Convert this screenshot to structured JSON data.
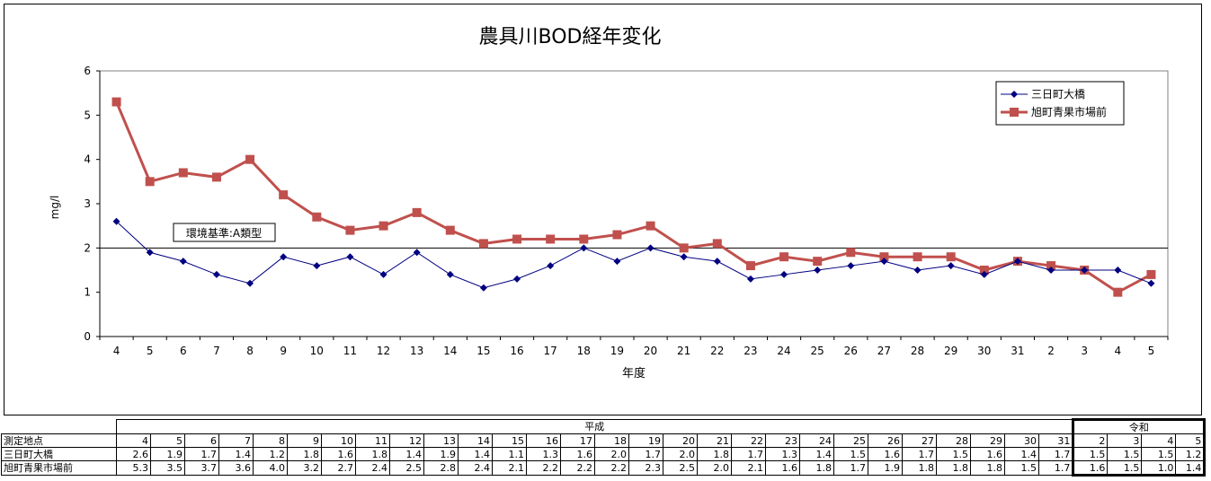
{
  "chart_data": {
    "type": "line",
    "title": "農具川BOD経年変化",
    "xlabel": "年度",
    "ylabel": "mg/l",
    "ylim": [
      0,
      6
    ],
    "yticks": [
      0,
      1,
      2,
      3,
      4,
      5,
      6
    ],
    "categories": [
      "4",
      "5",
      "6",
      "7",
      "8",
      "9",
      "10",
      "11",
      "12",
      "13",
      "14",
      "15",
      "16",
      "17",
      "18",
      "19",
      "20",
      "21",
      "22",
      "23",
      "24",
      "25",
      "26",
      "27",
      "28",
      "29",
      "30",
      "31",
      "2",
      "3",
      "4",
      "5"
    ],
    "series": [
      {
        "name": "三日町大橋",
        "color": "#000080",
        "marker": "diamond",
        "values": [
          2.6,
          1.9,
          1.7,
          1.4,
          1.2,
          1.8,
          1.6,
          1.8,
          1.4,
          1.9,
          1.4,
          1.1,
          1.3,
          1.6,
          2.0,
          1.7,
          2.0,
          1.8,
          1.7,
          1.3,
          1.4,
          1.5,
          1.6,
          1.7,
          1.5,
          1.6,
          1.4,
          1.7,
          1.5,
          1.5,
          1.5,
          1.2
        ]
      },
      {
        "name": "旭町青果市場前",
        "color": "#C0504D",
        "marker": "square",
        "values": [
          5.3,
          3.5,
          3.7,
          3.6,
          4.0,
          3.2,
          2.7,
          2.4,
          2.5,
          2.8,
          2.4,
          2.1,
          2.2,
          2.2,
          2.2,
          2.3,
          2.5,
          2.0,
          2.1,
          1.6,
          1.8,
          1.7,
          1.9,
          1.8,
          1.8,
          1.8,
          1.5,
          1.7,
          1.6,
          1.5,
          1.0,
          1.4
        ]
      }
    ],
    "reference_line": {
      "value": 2,
      "label": "環境基準:A類型"
    },
    "legend_position": "top-right",
    "grid": false
  },
  "table": {
    "corner_label": "測定地点",
    "eras": [
      {
        "label": "平成",
        "span": 28
      },
      {
        "label": "令和",
        "span": 4
      }
    ]
  }
}
